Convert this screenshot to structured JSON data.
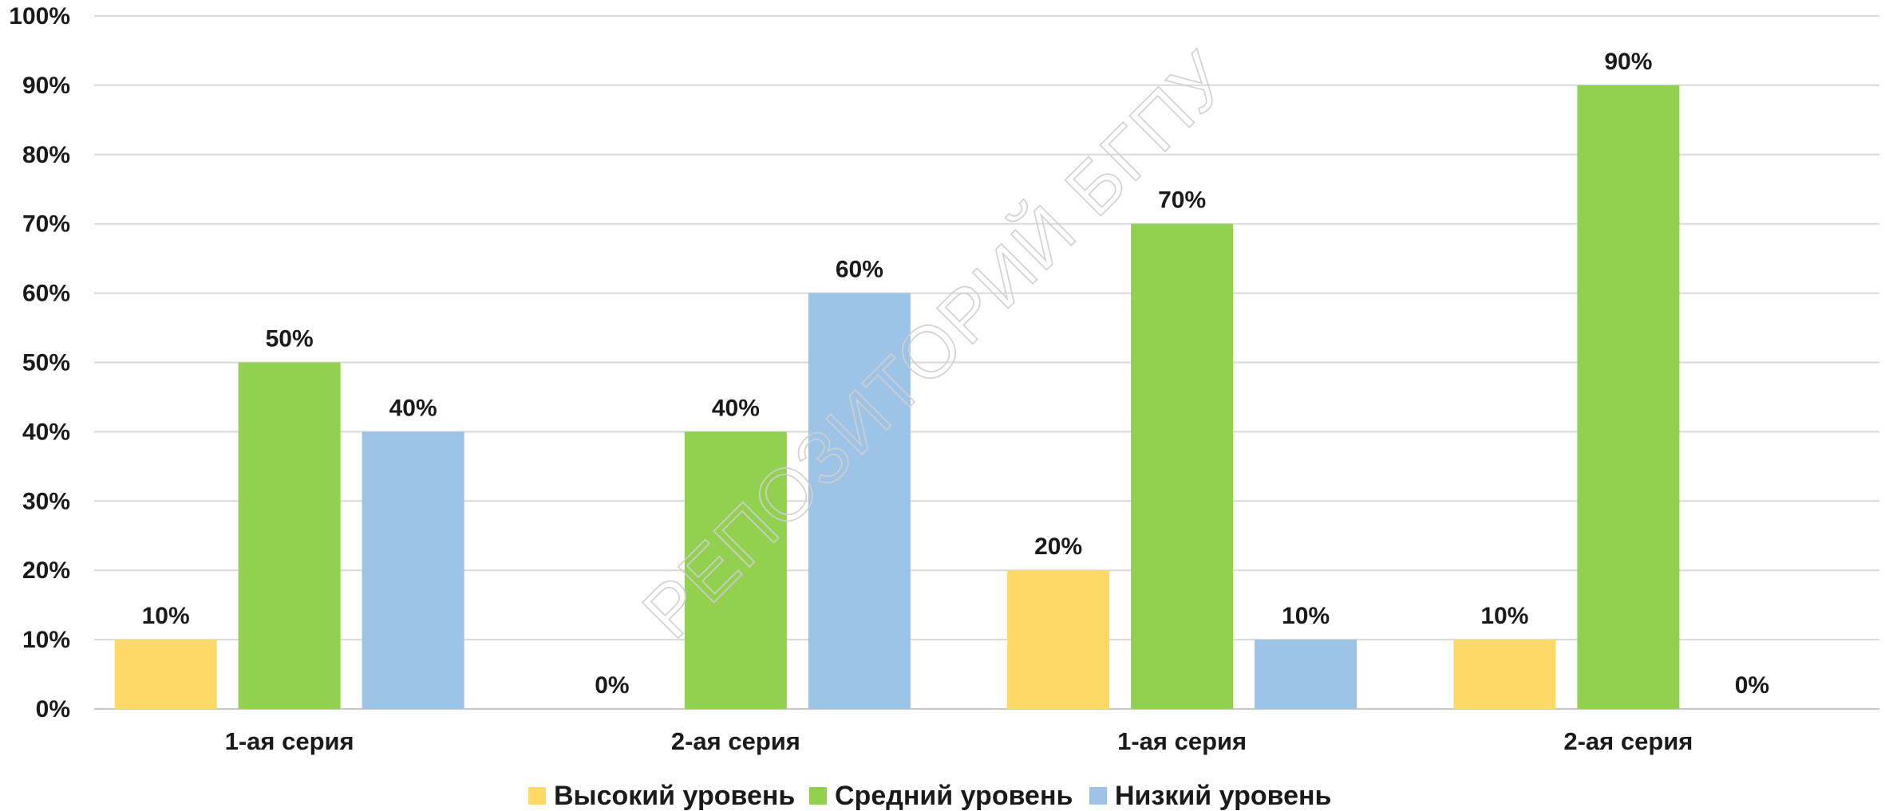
{
  "chart_data": {
    "type": "bar",
    "categories": [
      "1-ая серия",
      "2-ая серия",
      "1-ая серия",
      "2-ая серия"
    ],
    "series": [
      {
        "name": "Высокий уровень",
        "values": [
          10,
          0,
          20,
          10
        ],
        "color": "#FFD966"
      },
      {
        "name": "Средний уровень",
        "values": [
          50,
          40,
          70,
          90
        ],
        "color": "#92D050"
      },
      {
        "name": "Низкий уровень",
        "values": [
          40,
          60,
          10,
          0
        ],
        "color": "#9DC3E6"
      }
    ],
    "ylim": [
      0,
      100
    ],
    "y_ticks": [
      "0%",
      "10%",
      "20%",
      "30%",
      "40%",
      "50%",
      "60%",
      "70%",
      "80%",
      "90%",
      "100%"
    ],
    "data_labels": [
      [
        "10%",
        "0%",
        "20%",
        "10%"
      ],
      [
        "50%",
        "40%",
        "70%",
        "90%"
      ],
      [
        "40%",
        "60%",
        "10%",
        "0%"
      ]
    ],
    "grid": true,
    "legend_position": "bottom",
    "watermark": "РЕПОЗИТОРИЙ БГПУ"
  }
}
